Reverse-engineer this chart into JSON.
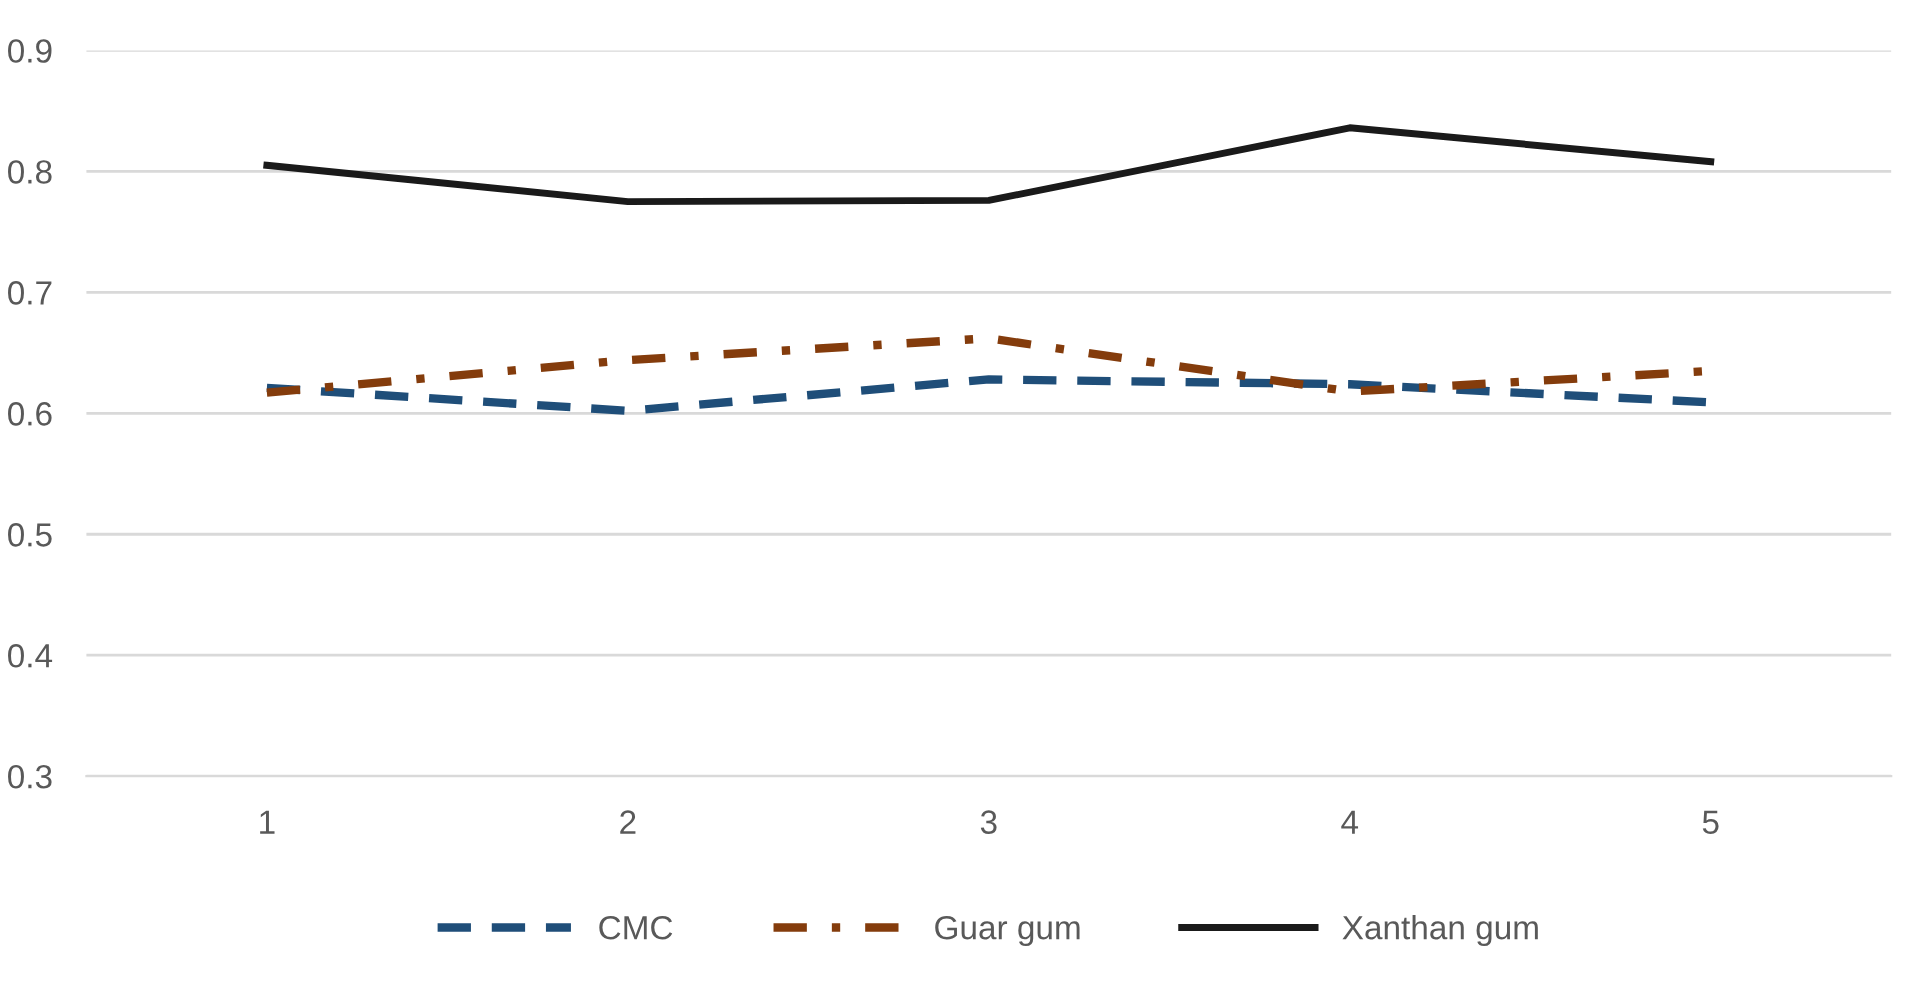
{
  "chart_data": {
    "type": "line",
    "categories": [
      "1",
      "2",
      "3",
      "4",
      "5"
    ],
    "series": [
      {
        "name": "CMC",
        "color": "#1f4e79",
        "line_style": "dashed",
        "values": [
          0.621,
          0.602,
          0.628,
          0.624,
          0.609
        ]
      },
      {
        "name": "Guar gum",
        "color": "#843c0c",
        "line_style": "dashdot",
        "values": [
          0.617,
          0.644,
          0.662,
          0.618,
          0.635
        ]
      },
      {
        "name": "Xanthan gum",
        "color": "#1a1a1a",
        "line_style": "solid",
        "values": [
          0.805,
          0.775,
          0.776,
          0.836,
          0.808
        ]
      }
    ],
    "ylim": [
      0.3,
      0.9
    ],
    "yticks": [
      0.3,
      0.4,
      0.5,
      0.6,
      0.7,
      0.8,
      0.9
    ],
    "grid": "y",
    "legend": "bottom"
  }
}
